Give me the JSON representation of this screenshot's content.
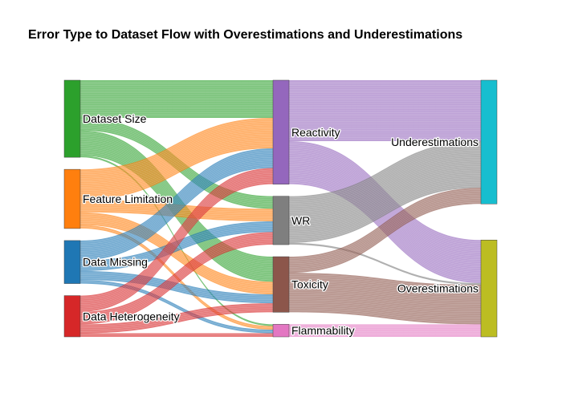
{
  "chart_data": {
    "type": "sankey",
    "title": "Error Type to Dataset Flow with Overestimations and Underestimations",
    "nodes": [
      {
        "id": "dataset_size",
        "label": "Dataset Size",
        "color": "#2ca02c",
        "column": 0
      },
      {
        "id": "feature_limitation",
        "label": "Feature Limitation",
        "color": "#ff7f0e",
        "column": 0
      },
      {
        "id": "data_missing",
        "label": "Data Missing",
        "color": "#1f77b4",
        "column": 0
      },
      {
        "id": "data_heterogeneity",
        "label": "Data Heterogeneity",
        "color": "#d62728",
        "column": 0
      },
      {
        "id": "reactivity",
        "label": "Reactivity",
        "color": "#9467bd",
        "column": 1
      },
      {
        "id": "wr",
        "label": "WR",
        "color": "#7f7f7f",
        "column": 1
      },
      {
        "id": "toxicity",
        "label": "Toxicity",
        "color": "#8c564b",
        "column": 1
      },
      {
        "id": "flammability",
        "label": "Flammability",
        "color": "#e377c2",
        "column": 1
      },
      {
        "id": "underestimations",
        "label": "Underestimations",
        "color": "#17becf",
        "column": 2
      },
      {
        "id": "overestimations",
        "label": "Overestimations",
        "color": "#bcbd22",
        "column": 2
      }
    ],
    "links": [
      {
        "source": "dataset_size",
        "target": "reactivity",
        "value": 21
      },
      {
        "source": "dataset_size",
        "target": "wr",
        "value": 7
      },
      {
        "source": "dataset_size",
        "target": "toxicity",
        "value": 14
      },
      {
        "source": "dataset_size",
        "target": "flammability",
        "value": 1
      },
      {
        "source": "feature_limitation",
        "target": "reactivity",
        "value": 17
      },
      {
        "source": "feature_limitation",
        "target": "wr",
        "value": 7
      },
      {
        "source": "feature_limitation",
        "target": "toxicity",
        "value": 7
      },
      {
        "source": "feature_limitation",
        "target": "flammability",
        "value": 2
      },
      {
        "source": "data_missing",
        "target": "reactivity",
        "value": 11
      },
      {
        "source": "data_missing",
        "target": "wr",
        "value": 6
      },
      {
        "source": "data_missing",
        "target": "toxicity",
        "value": 5
      },
      {
        "source": "data_missing",
        "target": "flammability",
        "value": 2
      },
      {
        "source": "data_heterogeneity",
        "target": "reactivity",
        "value": 9
      },
      {
        "source": "data_heterogeneity",
        "target": "wr",
        "value": 7
      },
      {
        "source": "data_heterogeneity",
        "target": "toxicity",
        "value": 5
      },
      {
        "source": "data_heterogeneity",
        "target": "flammability",
        "value": 2
      },
      {
        "source": "reactivity",
        "target": "underestimations",
        "value": 34
      },
      {
        "source": "reactivity",
        "target": "overestimations",
        "value": 24
      },
      {
        "source": "wr",
        "target": "underestimations",
        "value": 26
      },
      {
        "source": "wr",
        "target": "overestimations",
        "value": 1
      },
      {
        "source": "toxicity",
        "target": "underestimations",
        "value": 9
      },
      {
        "source": "toxicity",
        "target": "overestimations",
        "value": 22
      },
      {
        "source": "flammability",
        "target": "overestimations",
        "value": 7
      }
    ]
  }
}
